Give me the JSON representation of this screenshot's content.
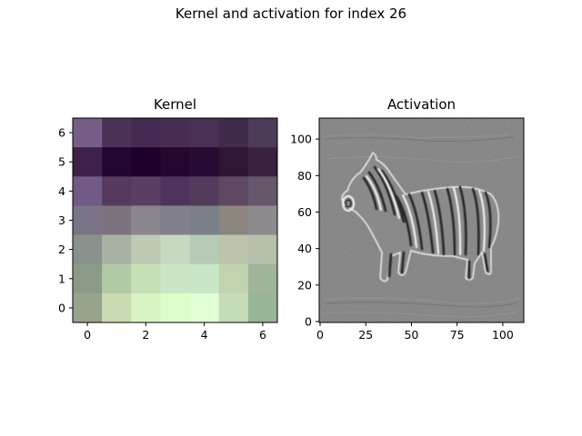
{
  "figure": {
    "title": "Kernel and activation for index 26"
  },
  "chart_data": [
    {
      "type": "heatmap",
      "title": "Kernel",
      "x_ticks": [
        "0",
        "2",
        "4",
        "6"
      ],
      "y_ticks": [
        "0",
        "1",
        "2",
        "3",
        "4",
        "5",
        "6"
      ],
      "xlim": [
        -0.5,
        6.5
      ],
      "ylim": [
        6.5,
        -0.5
      ],
      "cells": [
        [
          "#765e87",
          "#4b3358",
          "#452a51",
          "#472c52",
          "#483055",
          "#3f2b4b",
          "#4c3c57"
        ],
        [
          "#3f2049",
          "#220830",
          "#1e002b",
          "#24062f",
          "#270b33",
          "#2e1635",
          "#38223e"
        ],
        [
          "#715a86",
          "#55395f",
          "#5b3e64",
          "#4e345c",
          "#523c5c",
          "#5f4862",
          "#66576a"
        ],
        [
          "#7a7486",
          "#7c737f",
          "#8b868d",
          "#82808a",
          "#7b7f87",
          "#8b857e",
          "#8e8b8f"
        ],
        [
          "#8a918c",
          "#a8b2a4",
          "#bfcab5",
          "#c8d9c2",
          "#b6cbb5",
          "#bec3ad",
          "#b5bfab"
        ],
        [
          "#8b9a87",
          "#b2c9a5",
          "#c5e0b5",
          "#cbe6c4",
          "#c9e6c6",
          "#c1d3af",
          "#a0b49a"
        ],
        [
          "#98a38c",
          "#cbdbb2",
          "#d9f5c4",
          "#dcfecb",
          "#e2ffd3",
          "#c6dbb7",
          "#99b599"
        ]
      ]
    },
    {
      "type": "heatmap",
      "title": "Activation",
      "x_ticks": [
        "0",
        "25",
        "50",
        "75",
        "100"
      ],
      "y_ticks": [
        "0",
        "20",
        "40",
        "60",
        "80",
        "100"
      ],
      "xlim": [
        -0.5,
        111.5
      ],
      "ylim": [
        111.5,
        -0.5
      ],
      "subject": "zebra"
    }
  ]
}
